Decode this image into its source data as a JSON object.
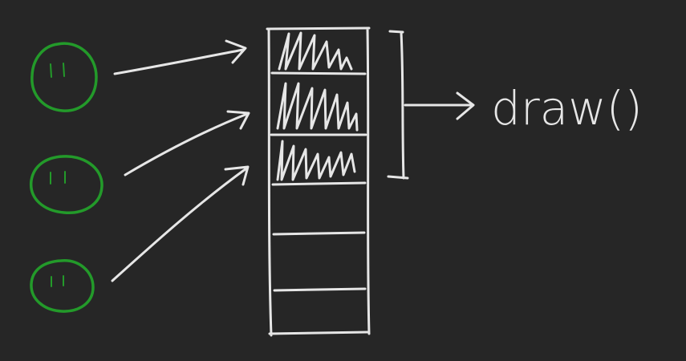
{
  "diagram": {
    "label": "draw()",
    "objects": [
      "object",
      "object",
      "object"
    ],
    "buffer_slots": [
      {
        "filled": true
      },
      {
        "filled": true
      },
      {
        "filled": true
      },
      {
        "filled": false
      },
      {
        "filled": false
      },
      {
        "filled": false
      }
    ],
    "colors": {
      "background": "#262626",
      "object": "#239a2a",
      "ink": "#e6e6e6"
    },
    "icons": [
      "smiley-icon",
      "arrow-icon",
      "bracket-icon"
    ]
  }
}
